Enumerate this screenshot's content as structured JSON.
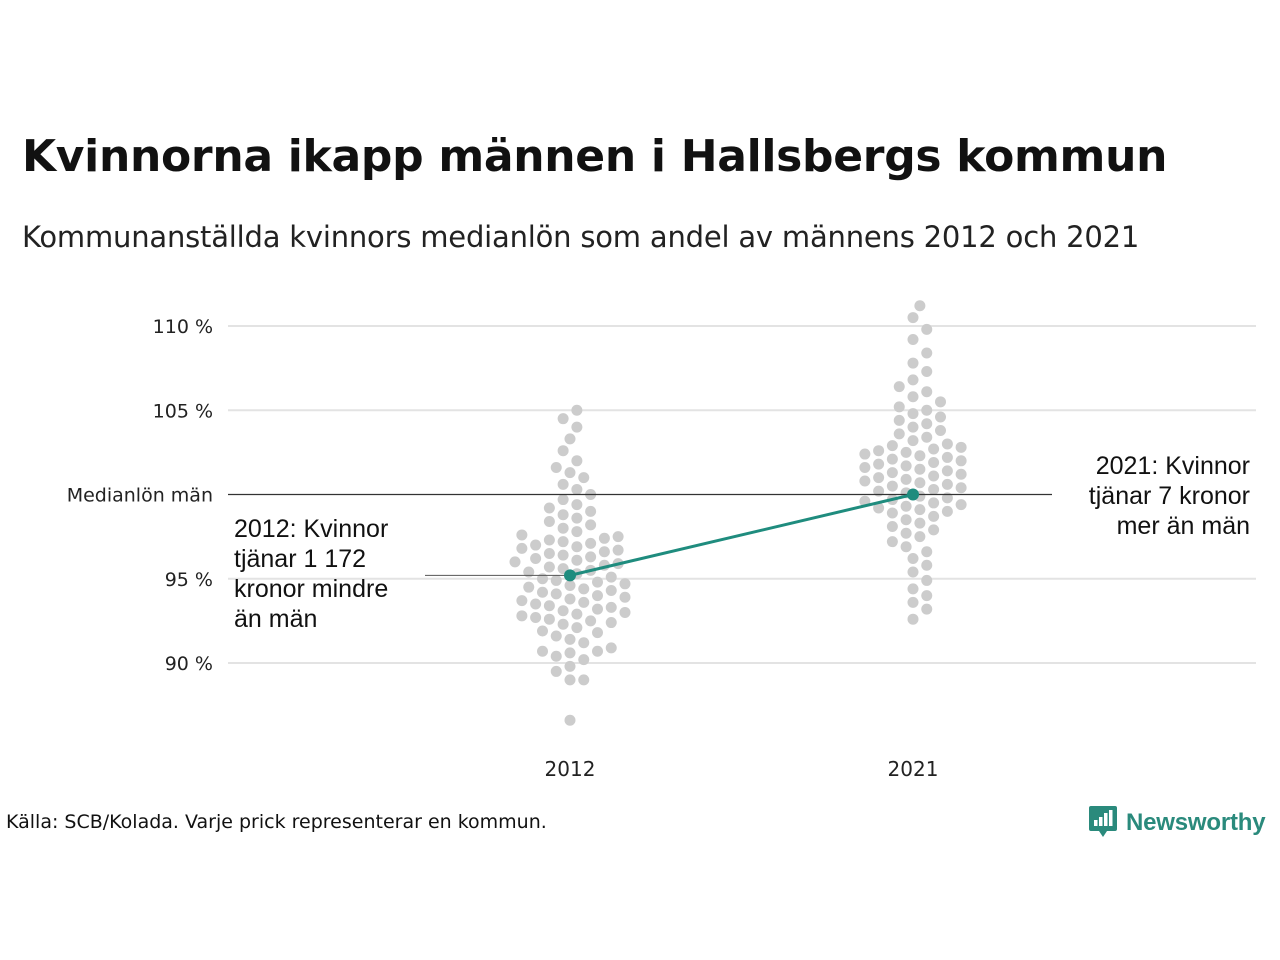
{
  "title": "Kvinnorna ikapp männen i Hallsbergs kommun",
  "subtitle": "Kommunanställda kvinnors medianlön som andel av männens 2012 och 2021",
  "source": "Källa: SCB/Kolada. Varje prick representerar en kommun.",
  "brand": {
    "name": "Newsworthy",
    "logo_icon": "bar-chart-speech-bubble-icon",
    "color": "#2a8a7c"
  },
  "chart_data": {
    "type": "scatter",
    "subtype": "beeswarm",
    "categories": [
      "2012",
      "2021"
    ],
    "y_ticks": [
      {
        "value": 90,
        "label": "90 %"
      },
      {
        "value": 95,
        "label": "95 %"
      },
      {
        "value": 100,
        "label": "Medianlön män"
      },
      {
        "value": 105,
        "label": "105 %"
      },
      {
        "value": 110,
        "label": "110 %"
      }
    ],
    "ylim": [
      86,
      111.5
    ],
    "grid": true,
    "reference_line": {
      "value": 100,
      "label": "Medianlön män",
      "color": "#333333"
    },
    "highlight": {
      "values": {
        "2012": 95.2,
        "2021": 100.0
      },
      "color": "#1f8c7e"
    },
    "swarm_color": "#cccccc",
    "annotations": [
      {
        "category": "2012",
        "lines": [
          "2012: Kvinnor",
          "tjänar 1 172",
          "kronor mindre",
          "än män"
        ],
        "align": "left"
      },
      {
        "category": "2021",
        "lines": [
          "2021: Kvinnor",
          "tjänar 7 kronor",
          "mer än män"
        ],
        "align": "right"
      }
    ],
    "series": [
      {
        "category": "2012",
        "values": [
          86.6,
          89.0,
          89.0,
          89.5,
          89.8,
          90.2,
          90.4,
          90.6,
          90.7,
          90.7,
          90.9,
          91.2,
          91.4,
          91.6,
          91.8,
          91.9,
          92.1,
          92.3,
          92.4,
          92.5,
          92.6,
          92.7,
          92.8,
          92.9,
          93.0,
          93.1,
          93.2,
          93.3,
          93.4,
          93.5,
          93.6,
          93.7,
          93.8,
          93.9,
          94.0,
          94.1,
          94.2,
          94.3,
          94.4,
          94.5,
          94.6,
          94.7,
          94.8,
          94.9,
          95.0,
          95.1,
          95.3,
          95.4,
          95.5,
          95.6,
          95.7,
          95.8,
          95.9,
          96.0,
          96.1,
          96.2,
          96.3,
          96.4,
          96.5,
          96.6,
          96.7,
          96.8,
          96.9,
          97.0,
          97.1,
          97.2,
          97.3,
          97.4,
          97.5,
          97.6,
          97.8,
          98.0,
          98.2,
          98.4,
          98.6,
          98.8,
          99.0,
          99.2,
          99.4,
          99.7,
          100.0,
          100.3,
          100.6,
          101.0,
          101.3,
          101.6,
          102.0,
          102.6,
          103.3,
          104.0,
          104.5,
          105.0
        ]
      },
      {
        "category": "2021",
        "values": [
          92.6,
          93.2,
          93.6,
          94.0,
          94.4,
          94.9,
          95.4,
          95.8,
          96.2,
          96.6,
          96.9,
          97.2,
          97.5,
          97.7,
          97.9,
          98.1,
          98.3,
          98.5,
          98.7,
          98.9,
          99.0,
          99.1,
          99.2,
          99.3,
          99.4,
          99.5,
          99.6,
          99.7,
          99.8,
          99.9,
          100.1,
          100.2,
          100.3,
          100.4,
          100.5,
          100.6,
          100.7,
          100.8,
          100.9,
          101.0,
          101.1,
          101.2,
          101.3,
          101.4,
          101.5,
          101.6,
          101.7,
          101.8,
          101.9,
          102.0,
          102.1,
          102.2,
          102.3,
          102.4,
          102.5,
          102.6,
          102.7,
          102.8,
          102.9,
          103.0,
          103.2,
          103.4,
          103.6,
          103.8,
          104.0,
          104.2,
          104.4,
          104.6,
          104.8,
          105.0,
          105.2,
          105.5,
          105.8,
          106.1,
          106.4,
          106.8,
          107.3,
          107.8,
          108.4,
          109.2,
          109.8,
          110.5,
          111.2
        ]
      }
    ]
  }
}
